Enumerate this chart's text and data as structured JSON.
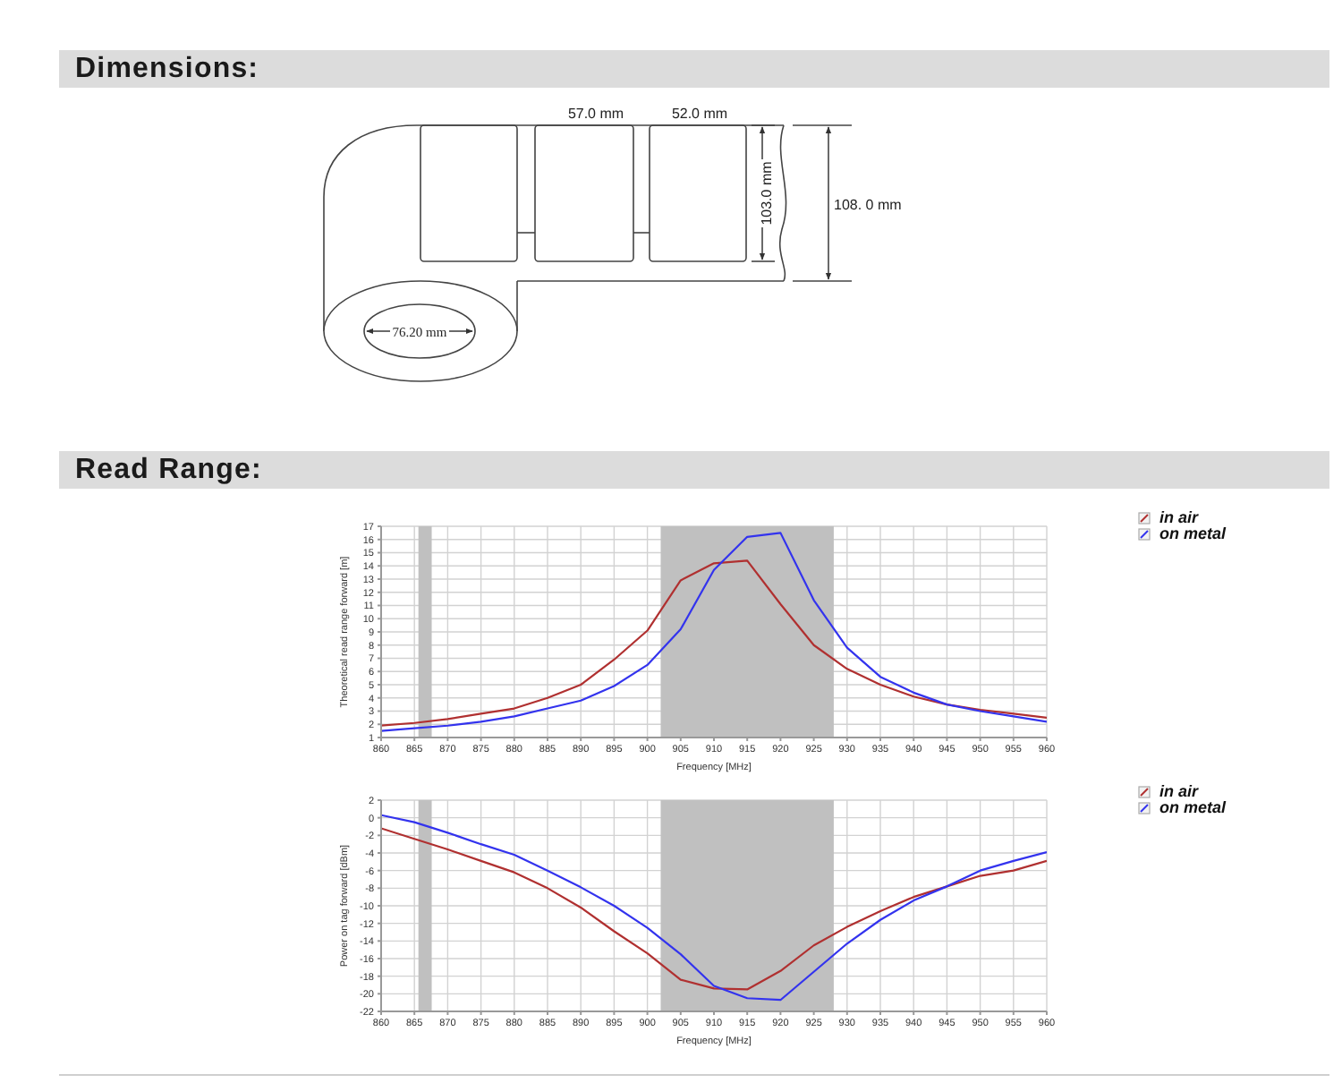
{
  "chart_data": [
    {
      "type": "other",
      "title": "Dimensions:",
      "annotations": [
        "57.0 mm",
        "52.0 mm",
        "103.0 mm",
        "108. 0 mm",
        "76.20 mm"
      ]
    },
    {
      "type": "line",
      "title": "Read Range:",
      "xlabel": "Frequency [MHz]",
      "ylabel": "Theoretical read range forward [m]",
      "x": [
        860,
        865,
        870,
        875,
        880,
        885,
        890,
        895,
        900,
        905,
        910,
        915,
        920,
        925,
        930,
        935,
        940,
        945,
        950,
        955,
        960
      ],
      "series": [
        {
          "name": "in air",
          "color": "#b03030",
          "values": [
            1.9,
            2.1,
            2.4,
            2.8,
            3.2,
            4.0,
            5.0,
            6.9,
            9.1,
            12.9,
            14.2,
            14.4,
            11.1,
            8.0,
            6.2,
            5.0,
            4.1,
            3.5,
            3.1,
            2.8,
            2.5
          ]
        },
        {
          "name": "on metal",
          "color": "#3333ee",
          "values": [
            1.5,
            1.7,
            1.9,
            2.2,
            2.6,
            3.2,
            3.8,
            4.9,
            6.5,
            9.2,
            13.7,
            16.2,
            16.5,
            11.4,
            7.8,
            5.6,
            4.4,
            3.5,
            3.0,
            2.6,
            2.2
          ]
        }
      ],
      "xlim": [
        860,
        960
      ],
      "xticks": [
        860,
        865,
        870,
        875,
        880,
        885,
        890,
        895,
        900,
        905,
        910,
        915,
        920,
        925,
        930,
        935,
        940,
        945,
        950,
        955,
        960
      ],
      "ylim": [
        1,
        17
      ],
      "yticks": [
        1,
        2,
        3,
        4,
        5,
        6,
        7,
        8,
        9,
        10,
        11,
        12,
        13,
        14,
        15,
        16,
        17
      ],
      "bands": [
        {
          "axis": "x",
          "from": 865.6,
          "to": 867.6,
          "color": "#c0c0c0"
        },
        {
          "axis": "x",
          "from": 902,
          "to": 928,
          "color": "#c0c0c0"
        }
      ],
      "grid": true,
      "legend": "top right",
      "line_style": "solid"
    },
    {
      "type": "line",
      "xlabel": "Frequency [MHz]",
      "ylabel": "Power on tag forward [dBm]",
      "x": [
        860,
        865,
        870,
        875,
        880,
        885,
        890,
        895,
        900,
        905,
        910,
        915,
        920,
        925,
        930,
        935,
        940,
        945,
        950,
        955,
        960
      ],
      "series": [
        {
          "name": "in air",
          "color": "#b03030",
          "values": [
            -1.2,
            -2.4,
            -3.6,
            -4.9,
            -6.2,
            -8.0,
            -10.2,
            -12.9,
            -15.4,
            -18.4,
            -19.4,
            -19.5,
            -17.4,
            -14.5,
            -12.4,
            -10.6,
            -9.0,
            -7.8,
            -6.6,
            -6.0,
            -4.9
          ]
        },
        {
          "name": "on metal",
          "color": "#3333ee",
          "values": [
            0.3,
            -0.5,
            -1.7,
            -3.0,
            -4.2,
            -6.0,
            -7.9,
            -10.0,
            -12.5,
            -15.5,
            -19.1,
            -20.5,
            -20.7,
            -17.5,
            -14.3,
            -11.6,
            -9.4,
            -7.8,
            -6.0,
            -4.9,
            -3.9
          ]
        }
      ],
      "xlim": [
        860,
        960
      ],
      "xticks": [
        860,
        865,
        870,
        875,
        880,
        885,
        890,
        895,
        900,
        905,
        910,
        915,
        920,
        925,
        930,
        935,
        940,
        945,
        950,
        955,
        960
      ],
      "ylim": [
        -22,
        2
      ],
      "yticks": [
        -22,
        -20,
        -18,
        -16,
        -14,
        -12,
        -10,
        -8,
        -6,
        -4,
        -2,
        0,
        2
      ],
      "bands": [
        {
          "axis": "x",
          "from": 865.6,
          "to": 867.6,
          "color": "#c0c0c0"
        },
        {
          "axis": "x",
          "from": 902,
          "to": 928,
          "color": "#c0c0c0"
        }
      ],
      "grid": true,
      "legend": "top right",
      "line_style": "solid"
    }
  ]
}
